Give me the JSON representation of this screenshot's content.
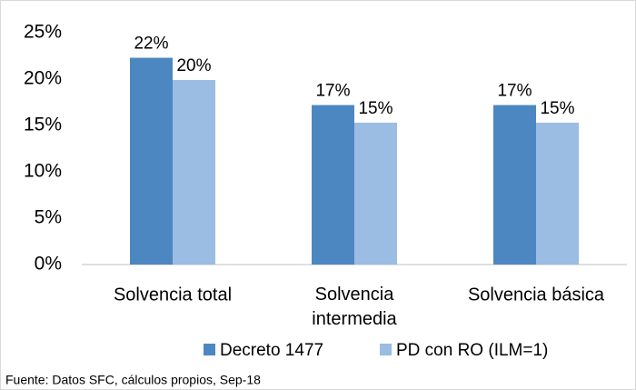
{
  "chart_data": {
    "type": "bar",
    "categories": [
      "Solvencia total",
      "Solvencia intermedia",
      "Solvencia básica"
    ],
    "series": [
      {
        "name": "Decreto 1477",
        "color": "#4d87c1",
        "values": [
          22.3,
          17.2,
          17.2
        ],
        "value_labels": [
          "22%",
          "17%",
          "17%"
        ]
      },
      {
        "name": "PD con RO (ILM=1)",
        "color": "#9bbce3",
        "values": [
          19.9,
          15.3,
          15.3
        ],
        "value_labels": [
          "20%",
          "15%",
          "15%"
        ]
      }
    ],
    "ylim": [
      0,
      25
    ],
    "yticks": [
      {
        "value": 0,
        "label": "0%"
      },
      {
        "value": 5,
        "label": "5%"
      },
      {
        "value": 10,
        "label": "10%"
      },
      {
        "value": 15,
        "label": "15%"
      },
      {
        "value": 20,
        "label": "20%"
      },
      {
        "value": 25,
        "label": "25%"
      }
    ],
    "legend": "bottom",
    "footnote": "Fuente: Datos SFC, cálculos propios, Sep-18"
  }
}
